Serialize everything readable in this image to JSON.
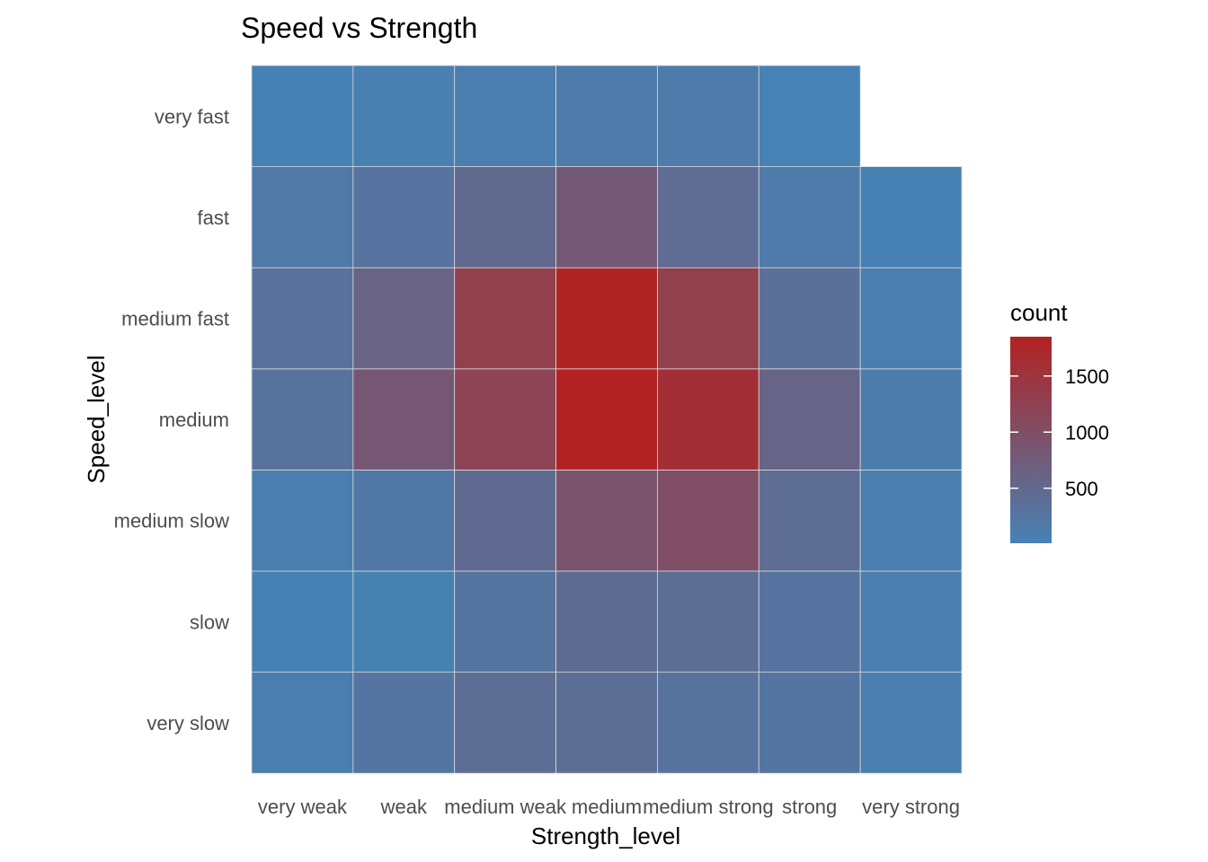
{
  "chart_data": {
    "type": "heatmap",
    "title": "Speed vs Strength",
    "xlabel": "Strength_level",
    "ylabel": "Speed_level",
    "x_categories": [
      "very weak",
      "weak",
      "medium weak",
      "medium",
      "medium strong",
      "strong",
      "very strong"
    ],
    "y_categories": [
      "very slow",
      "slow",
      "medium slow",
      "medium",
      "medium fast",
      "fast",
      "very fast"
    ],
    "values": [
      [
        80,
        250,
        400,
        400,
        300,
        250,
        70
      ],
      [
        20,
        30,
        270,
        450,
        400,
        280,
        70
      ],
      [
        80,
        200,
        470,
        900,
        1000,
        420,
        80
      ],
      [
        300,
        830,
        1200,
        1850,
        1600,
        580,
        120
      ],
      [
        330,
        600,
        1300,
        1800,
        1300,
        350,
        90
      ],
      [
        180,
        280,
        480,
        800,
        430,
        150,
        20
      ],
      [
        20,
        40,
        90,
        150,
        150,
        10,
        null
      ]
    ],
    "legend": {
      "title": "count",
      "ticks": [
        500,
        1000,
        1500
      ],
      "min": 10,
      "max": 1850,
      "low_color": "#4682b4",
      "high_color": "#b22222"
    },
    "grid": false,
    "legend_position": "right"
  }
}
